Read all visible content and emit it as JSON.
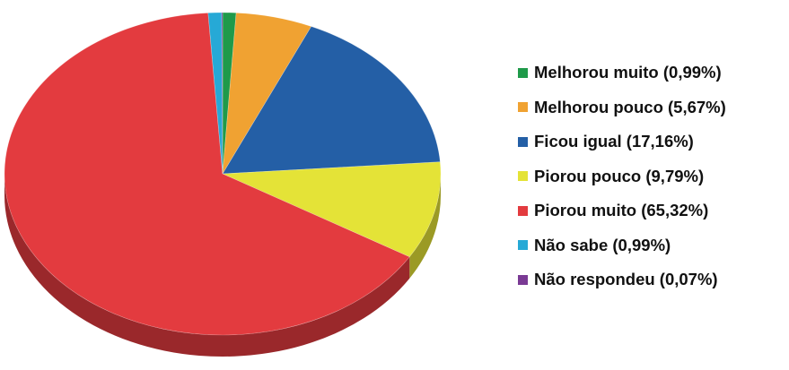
{
  "chart_data": {
    "type": "pie",
    "style": "3d",
    "legend_position": "right",
    "slices": [
      {
        "label": "Melhorou muito (0,99%)",
        "value": 0.99,
        "color": "#1f9a4a"
      },
      {
        "label": "Melhorou pouco (5,67%)",
        "value": 5.67,
        "color": "#f0a232"
      },
      {
        "label": "Ficou igual (17,16%)",
        "value": 17.16,
        "color": "#245fa6"
      },
      {
        "label": "Piorou pouco (9,79%)",
        "value": 9.79,
        "color": "#e4e337"
      },
      {
        "label": "Piorou muito (65,32%)",
        "value": 65.32,
        "color": "#e33b3f"
      },
      {
        "label": "Não sabe (0,99%)",
        "value": 0.99,
        "color": "#26a9d6"
      },
      {
        "label": "Não respondeu (0,07%)",
        "value": 0.07,
        "color": "#7a3a94"
      }
    ]
  }
}
